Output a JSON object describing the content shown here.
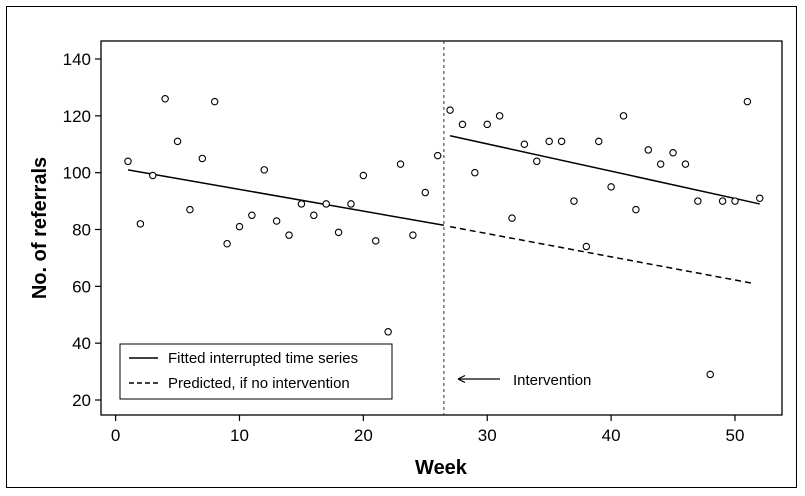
{
  "chart_data": {
    "type": "scatter",
    "xlabel": "Week",
    "ylabel": "No. of referrals",
    "xlim": [
      -1,
      54
    ],
    "ylim": [
      15,
      147
    ],
    "xticks": [
      0,
      10,
      20,
      30,
      40,
      50
    ],
    "yticks": [
      20,
      40,
      60,
      80,
      100,
      120,
      140
    ],
    "grid": false,
    "legend_position": "bottom-left",
    "intervention_week": 26.5,
    "series": [
      {
        "name": "",
        "style": "open-circle",
        "points": [
          [
            1,
            104
          ],
          [
            2,
            82
          ],
          [
            3,
            99
          ],
          [
            4,
            126
          ],
          [
            5,
            111
          ],
          [
            6,
            87
          ],
          [
            7,
            105
          ],
          [
            8,
            125
          ],
          [
            9,
            75
          ],
          [
            10,
            81
          ],
          [
            11,
            85
          ],
          [
            12,
            101
          ],
          [
            13,
            83
          ],
          [
            14,
            78
          ],
          [
            15,
            89
          ],
          [
            16,
            85
          ],
          [
            17,
            89
          ],
          [
            18,
            79
          ],
          [
            19,
            89
          ],
          [
            20,
            99
          ],
          [
            21,
            76
          ],
          [
            22,
            44
          ],
          [
            23,
            103
          ],
          [
            24,
            78
          ],
          [
            25,
            93
          ],
          [
            26,
            106
          ],
          [
            27,
            122
          ],
          [
            28,
            117
          ],
          [
            29,
            100
          ],
          [
            30,
            117
          ],
          [
            31,
            120
          ],
          [
            32,
            84
          ],
          [
            33,
            110
          ],
          [
            34,
            104
          ],
          [
            35,
            111
          ],
          [
            36,
            111
          ],
          [
            37,
            90
          ],
          [
            38,
            74
          ],
          [
            39,
            111
          ],
          [
            40,
            95
          ],
          [
            41,
            120
          ],
          [
            42,
            87
          ],
          [
            43,
            108
          ],
          [
            44,
            103
          ],
          [
            45,
            107
          ],
          [
            46,
            103
          ],
          [
            47,
            90
          ],
          [
            48,
            29
          ],
          [
            49,
            90
          ],
          [
            50,
            90
          ],
          [
            51,
            125
          ],
          [
            52,
            91
          ]
        ]
      },
      {
        "name": "Fitted interrupted time series",
        "style": "solid",
        "segments": [
          [
            [
              1,
              101
            ],
            [
              26.5,
              81.5
            ]
          ],
          [
            [
              27,
              113
            ],
            [
              52,
              89
            ]
          ]
        ]
      },
      {
        "name": "Predicted, if no intervention",
        "style": "dashed",
        "segments": [
          [
            [
              27,
              81
            ],
            [
              51.5,
              61
            ]
          ]
        ]
      }
    ],
    "annotations": [
      {
        "text": "Intervention",
        "at": [
          27.5,
          28
        ],
        "arrow": "left"
      }
    ]
  }
}
